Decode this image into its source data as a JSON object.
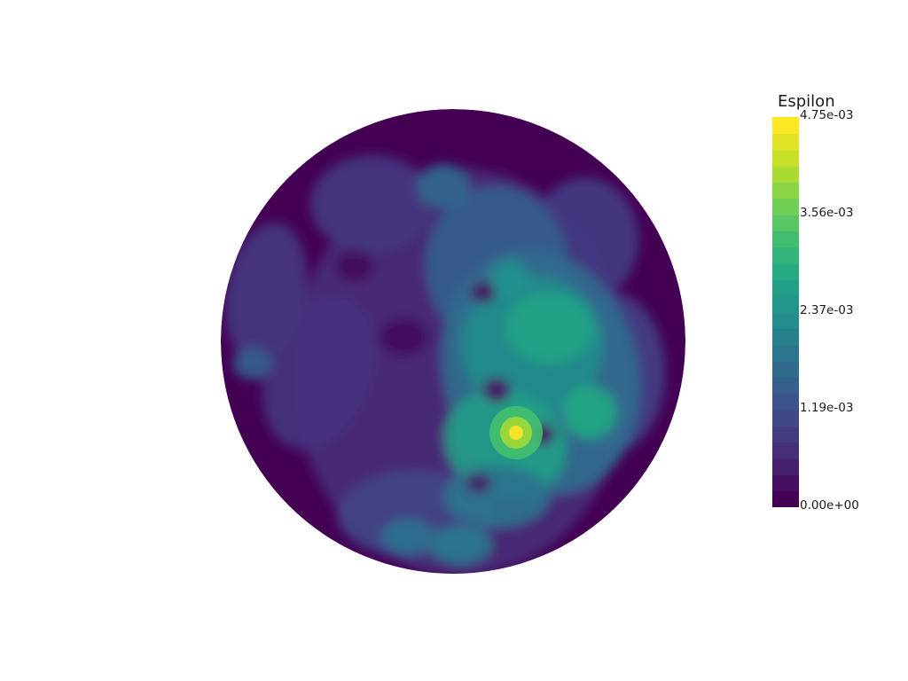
{
  "scalar_bar": {
    "title": "Espilon",
    "min": 0.0,
    "max": 0.00475,
    "levels": 24,
    "tick_labels": [
      "4.75e-03",
      "3.56e-03",
      "2.37e-03",
      "1.19e-03",
      "0.00e+00"
    ],
    "tick_fractions": [
      1.0,
      0.75,
      0.5,
      0.25,
      0.0
    ],
    "colormap": "viridis"
  },
  "colors": {
    "background": "#ffffff",
    "low": "#440154",
    "mid": "#21918c",
    "high": "#fde725"
  }
}
